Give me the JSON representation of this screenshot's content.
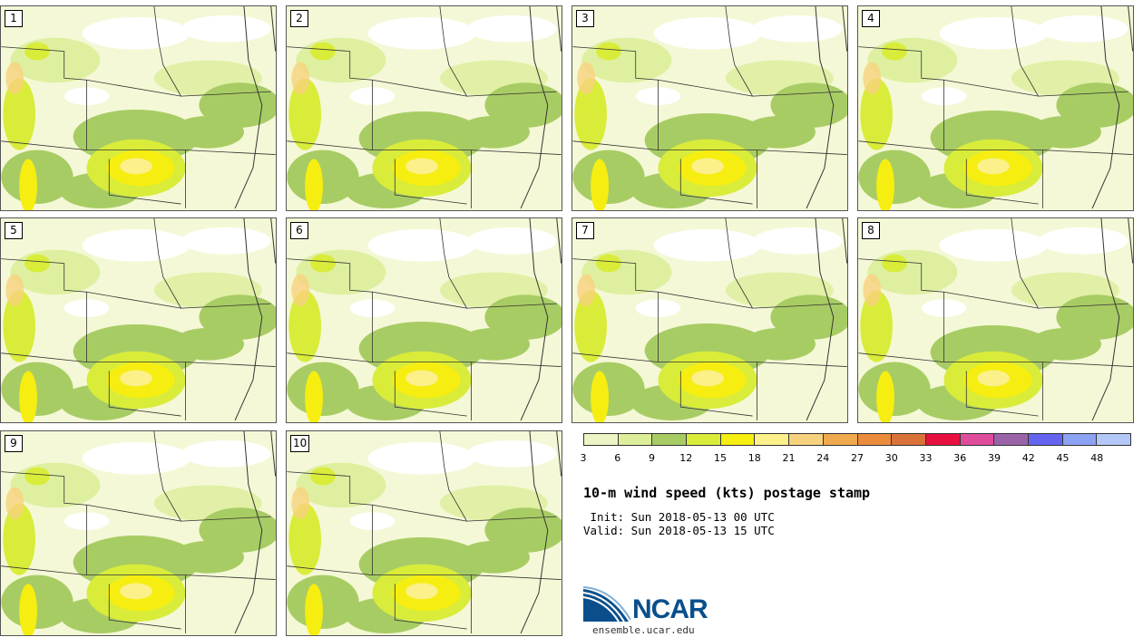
{
  "panels": [
    {
      "label": "1"
    },
    {
      "label": "2"
    },
    {
      "label": "3"
    },
    {
      "label": "4"
    },
    {
      "label": "5"
    },
    {
      "label": "6"
    },
    {
      "label": "7"
    },
    {
      "label": "8"
    },
    {
      "label": "9"
    },
    {
      "label": "10"
    }
  ],
  "colorbar": {
    "ticks": [
      "3",
      "6",
      "9",
      "12",
      "15",
      "18",
      "21",
      "24",
      "27",
      "30",
      "33",
      "36",
      "39",
      "42",
      "45",
      "48"
    ],
    "colors": [
      "#eef5c4",
      "#dcee9a",
      "#a8cc64",
      "#d9ec3a",
      "#f6ee10",
      "#fbf08a",
      "#f7d27e",
      "#f0a94c",
      "#ea8c3c",
      "#d9733a",
      "#e81040",
      "#e04c9c",
      "#9c64a8",
      "#6464f0",
      "#8ca2f4",
      "#b4c8f8"
    ]
  },
  "title": "10-m wind speed (kts) postage stamp",
  "init": " Init: Sun 2018-05-13 00 UTC",
  "valid": "Valid: Sun 2018-05-13 15 UTC",
  "logo": {
    "text": "NCAR",
    "site": "ensemble.ucar.edu",
    "accent": "#0a4f8c"
  }
}
